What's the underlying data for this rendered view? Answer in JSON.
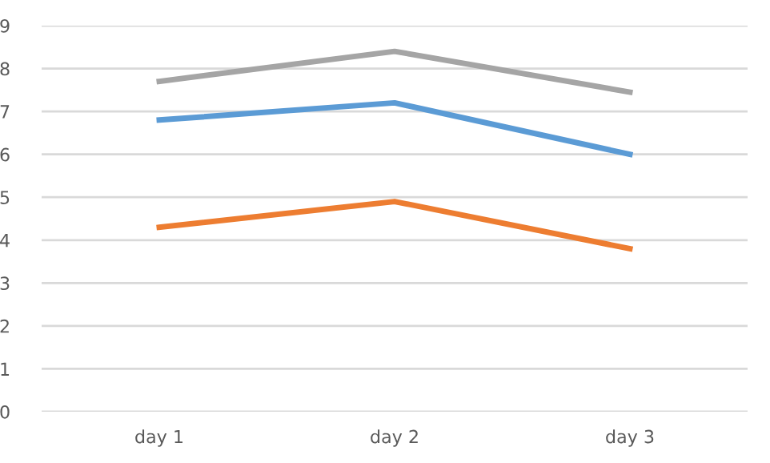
{
  "chart_data": {
    "type": "line",
    "categories": [
      "day 1",
      "day 2",
      "day 3"
    ],
    "series": [
      {
        "color": "#5b9bd5",
        "values": [
          6.8,
          7.2,
          6.0
        ]
      },
      {
        "color": "#ed7d31",
        "values": [
          4.3,
          4.9,
          3.8
        ]
      },
      {
        "color": "#a5a5a5",
        "values": [
          7.7,
          8.4,
          7.45
        ]
      }
    ],
    "ylim": [
      0,
      9
    ],
    "yticks": [
      0,
      1,
      2,
      3,
      4,
      5,
      6,
      7,
      8,
      9
    ],
    "grid": "y",
    "marker": "none",
    "line_style": "solid"
  }
}
